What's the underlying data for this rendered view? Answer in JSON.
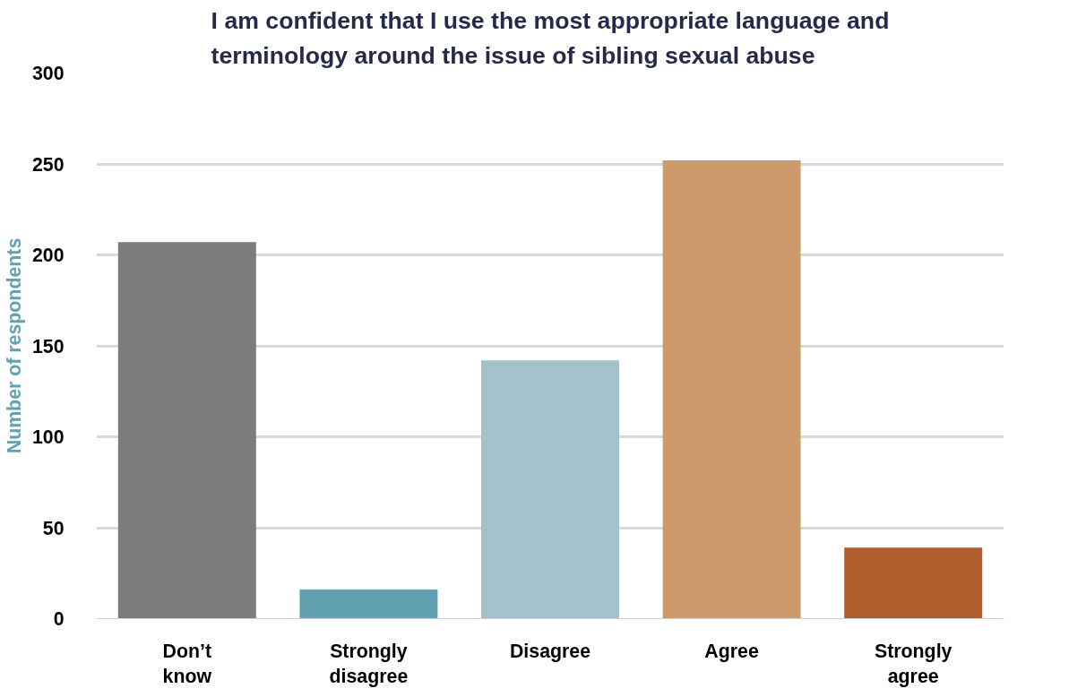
{
  "chart_data": {
    "type": "bar",
    "title": "I am confident that I use the most appropriate language and\nterminology around the issue of sibling sexual abuse",
    "ylabel": "Number of respondents",
    "categories": [
      "Don’t\nknow",
      "Strongly\ndisagree",
      "Disagree",
      "Agree",
      "Strongly\nagree"
    ],
    "values": [
      207,
      16,
      142,
      252,
      39
    ],
    "colors": [
      "#7c7c7c",
      "#62a1b2",
      "#a3c0cb",
      "#cd9b6b",
      "#ae5d2b"
    ],
    "ylim": [
      0,
      300
    ],
    "yticks": [
      0,
      50,
      100,
      150,
      200,
      250,
      300
    ],
    "grid": "y"
  }
}
